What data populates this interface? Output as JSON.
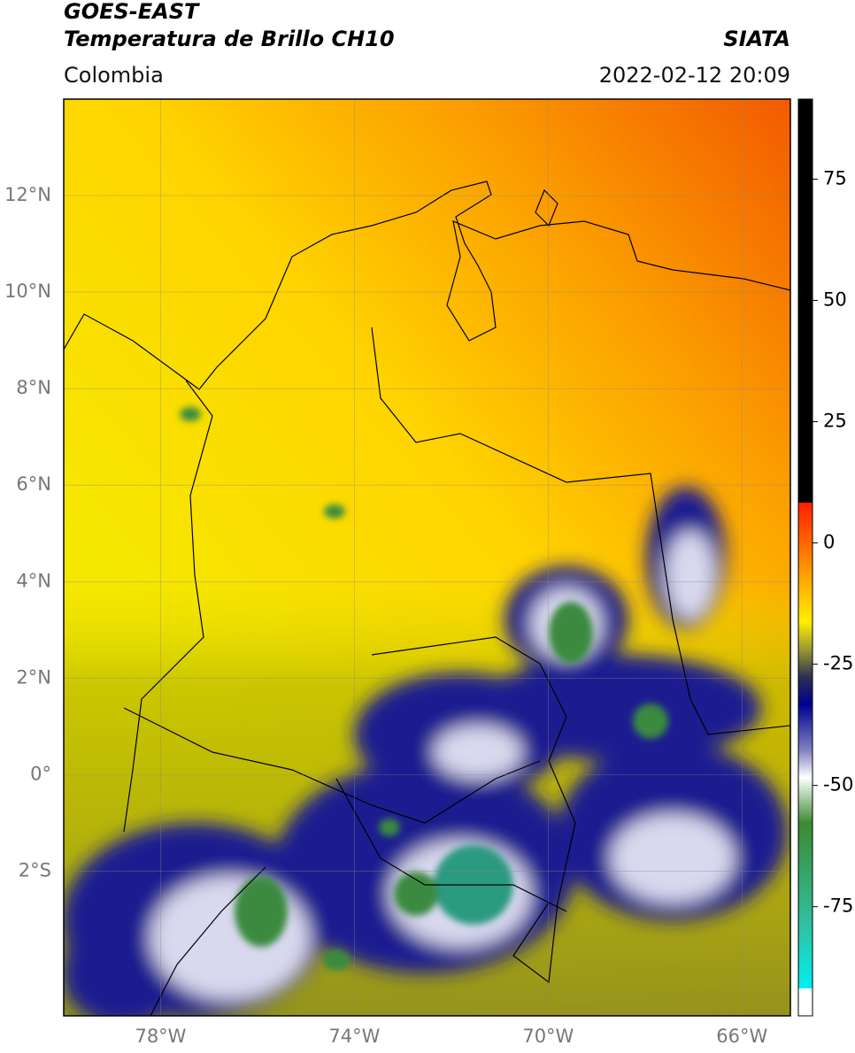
{
  "header": {
    "title": "GOES-EAST",
    "subtitle": "Temperatura de Brillo CH10",
    "region": "Colombia",
    "source": "SIATA",
    "datetime": "2022-02-12 20:09"
  },
  "map": {
    "lonlim": [
      -80,
      -65
    ],
    "latlim": [
      -5,
      14
    ],
    "lonticks": [
      {
        "value": -78,
        "label": "78°W"
      },
      {
        "value": -74,
        "label": "74°W"
      },
      {
        "value": -70,
        "label": "70°W"
      },
      {
        "value": -66,
        "label": "66°W"
      }
    ],
    "latticks": [
      {
        "value": 12,
        "label": "12°N"
      },
      {
        "value": 10,
        "label": "10°N"
      },
      {
        "value": 8,
        "label": "8°N"
      },
      {
        "value": 6,
        "label": "6°N"
      },
      {
        "value": 4,
        "label": "4°N"
      },
      {
        "value": 2,
        "label": "2°N"
      },
      {
        "value": 0,
        "label": "0°"
      },
      {
        "value": -2,
        "label": "2°S"
      }
    ]
  },
  "colorbar": {
    "lim": [
      -97.5,
      91.5
    ],
    "ticks": [
      75,
      50,
      25,
      0,
      -25,
      -50,
      -75
    ]
  }
}
